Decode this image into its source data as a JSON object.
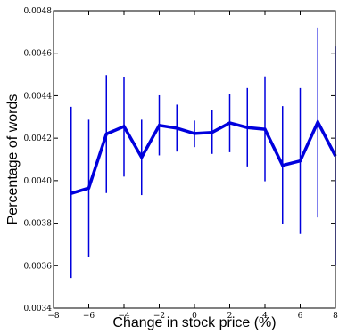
{
  "chart_data": {
    "type": "line",
    "title": "",
    "xlabel": "Change in stock price (%)",
    "ylabel": "Percentage of words",
    "xlim": [
      -8,
      8
    ],
    "ylim": [
      0.0034,
      0.0048
    ],
    "x_ticks": [
      -8,
      -6,
      -4,
      -2,
      0,
      2,
      4,
      6,
      8
    ],
    "x_tick_labels": [
      "−8",
      "−6",
      "−4",
      "−2",
      "0",
      "2",
      "4",
      "6",
      "8"
    ],
    "y_ticks": [
      0.0034,
      0.0036,
      0.0038,
      0.004,
      0.0042,
      0.0044,
      0.0046,
      0.0048
    ],
    "y_tick_labels": [
      "0.0034",
      "0.0036",
      "0.0038",
      "0.0040",
      "0.0042",
      "0.0044",
      "0.0046",
      "0.0048"
    ],
    "grid": false,
    "legend": "none",
    "series": [
      {
        "color": "#0000dd",
        "x": [
          -7,
          -6,
          -5,
          -4,
          -3,
          -2,
          -1,
          0,
          1,
          2,
          3,
          4,
          5,
          6,
          7,
          8
        ],
        "y": [
          0.00394,
          0.003965,
          0.00422,
          0.004255,
          0.00411,
          0.00426,
          0.004247,
          0.004222,
          0.004227,
          0.004272,
          0.00425,
          0.004242,
          0.004072,
          0.004093,
          0.004276,
          0.004116
        ],
        "err_low": [
          0.003542,
          0.003642,
          0.003942,
          0.004019,
          0.003932,
          0.004119,
          0.004137,
          0.004158,
          0.004126,
          0.004134,
          0.004067,
          0.003997,
          0.003796,
          0.003749,
          0.003827,
          0.0036
        ],
        "err_high": [
          0.004348,
          0.004287,
          0.004497,
          0.004489,
          0.004287,
          0.004402,
          0.004358,
          0.004283,
          0.004332,
          0.004409,
          0.004436,
          0.004491,
          0.004351,
          0.004436,
          0.004721,
          0.004632
        ]
      }
    ]
  }
}
